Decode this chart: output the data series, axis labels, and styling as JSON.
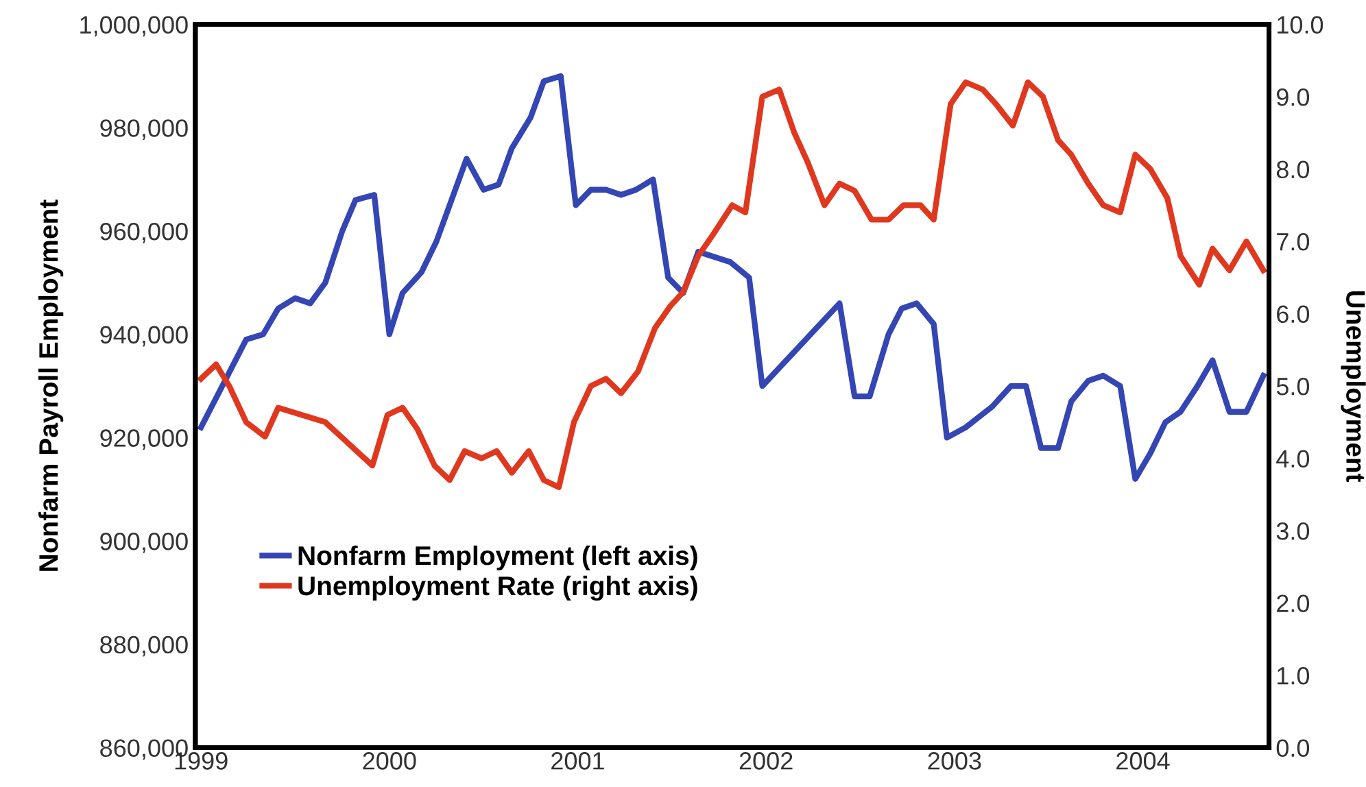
{
  "chart_data": {
    "type": "line",
    "ylabel": "Nonfarm Payroll Employment",
    "y2label": "Unemployment",
    "xlim": [
      1998.97,
      2004.67
    ],
    "xticks": [
      1999,
      2000,
      2001,
      2002,
      2003,
      2004
    ],
    "ylim": [
      860000,
      1000000
    ],
    "yticks": [
      {
        "value": 860000,
        "label": "860,000"
      },
      {
        "value": 880000,
        "label": "880,000"
      },
      {
        "value": 900000,
        "label": "900,000"
      },
      {
        "value": 920000,
        "label": "920,000"
      },
      {
        "value": 940000,
        "label": "940,000"
      },
      {
        "value": 960000,
        "label": "960,000"
      },
      {
        "value": 980000,
        "label": "980,000"
      },
      {
        "value": 1000000,
        "label": "1,000,000"
      }
    ],
    "y2lim": [
      0,
      10
    ],
    "y2ticks": [
      {
        "value": 0,
        "label": "0.0"
      },
      {
        "value": 1,
        "label": "1.0"
      },
      {
        "value": 2,
        "label": "2.0"
      },
      {
        "value": 3,
        "label": "3.0"
      },
      {
        "value": 4,
        "label": "4.0"
      },
      {
        "value": 5,
        "label": "5.0"
      },
      {
        "value": 6,
        "label": "6.0"
      },
      {
        "value": 7,
        "label": "7.0"
      },
      {
        "value": 8,
        "label": "8.0"
      },
      {
        "value": 9,
        "label": "9.0"
      },
      {
        "value": 10,
        "label": "10.0"
      }
    ],
    "grid": false,
    "legend": "lower left",
    "marker": "none",
    "line_style": "solid",
    "series": [
      {
        "name": "Nonfarm Employment (left axis)",
        "color": "#3445b4",
        "axis": "y",
        "x": [
          1999.0,
          1999.24,
          1999.33,
          1999.41,
          1999.5,
          1999.58,
          1999.66,
          1999.75,
          1999.82,
          1999.92,
          2000.0,
          2000.07,
          2000.17,
          2000.25,
          2000.34,
          2000.41,
          2000.5,
          2000.58,
          2000.65,
          2000.75,
          2000.82,
          2000.91,
          2000.99,
          2001.07,
          2001.15,
          2001.23,
          2001.31,
          2001.4,
          2001.48,
          2001.56,
          2001.64,
          2001.81,
          2001.91,
          2001.98,
          2002.39,
          2002.47,
          2002.55,
          2002.65,
          2002.72,
          2002.8,
          2002.89,
          2002.96,
          2003.06,
          2003.13,
          2003.2,
          2003.3,
          2003.38,
          2003.46,
          2003.55,
          2003.62,
          2003.71,
          2003.79,
          2003.88,
          2003.96,
          2004.04,
          2004.12,
          2004.2,
          2004.29,
          2004.37,
          2004.46,
          2004.55,
          2004.64
        ],
        "values": [
          922000,
          939000,
          940000,
          945000,
          947000,
          946000,
          950000,
          960000,
          966000,
          967000,
          940000,
          948000,
          952000,
          958000,
          967000,
          974000,
          968000,
          969000,
          976000,
          982000,
          989000,
          990000,
          965000,
          968000,
          968000,
          967000,
          968000,
          970000,
          951000,
          948000,
          956000,
          954000,
          951000,
          930000,
          946000,
          928000,
          928000,
          940000,
          945000,
          946000,
          942000,
          920000,
          922000,
          924000,
          926000,
          930000,
          930000,
          918000,
          918000,
          927000,
          931000,
          932000,
          930000,
          912000,
          917000,
          923000,
          925000,
          930000,
          935000,
          925000,
          925000,
          932000
        ]
      },
      {
        "name": "Unemployment Rate (right axis)",
        "color": "#e0381f",
        "axis": "y2",
        "x": [
          1999.0,
          1999.08,
          1999.15,
          1999.24,
          1999.34,
          1999.41,
          1999.66,
          1999.91,
          1999.99,
          2000.07,
          2000.15,
          2000.24,
          2000.32,
          2000.4,
          2000.49,
          2000.57,
          2000.65,
          2000.74,
          2000.82,
          2000.9,
          2000.98,
          2001.07,
          2001.15,
          2001.23,
          2001.32,
          2001.41,
          2001.49,
          2001.56,
          2001.64,
          2001.72,
          2001.82,
          2001.89,
          2001.98,
          2002.07,
          2002.15,
          2002.22,
          2002.31,
          2002.39,
          2002.47,
          2002.56,
          2002.65,
          2002.73,
          2002.82,
          2002.89,
          2002.98,
          2003.06,
          2003.15,
          2003.22,
          2003.31,
          2003.39,
          2003.47,
          2003.55,
          2003.62,
          2003.71,
          2003.79,
          2003.88,
          2003.96,
          2004.04,
          2004.13,
          2004.2,
          2004.3,
          2004.37,
          2004.46,
          2004.55,
          2004.64
        ],
        "values": [
          5.1,
          5.3,
          5.0,
          4.5,
          4.3,
          4.7,
          4.5,
          3.9,
          4.6,
          4.7,
          4.4,
          3.9,
          3.7,
          4.1,
          4.0,
          4.1,
          3.8,
          4.1,
          3.7,
          3.6,
          4.5,
          5.0,
          5.1,
          4.9,
          5.2,
          5.8,
          6.1,
          6.3,
          6.8,
          7.1,
          7.5,
          7.4,
          9.0,
          9.1,
          8.5,
          8.1,
          7.5,
          7.8,
          7.7,
          7.3,
          7.3,
          7.5,
          7.5,
          7.3,
          8.9,
          9.2,
          9.1,
          8.9,
          8.6,
          9.2,
          9.0,
          8.4,
          8.2,
          7.8,
          7.5,
          7.4,
          8.2,
          8.0,
          7.6,
          6.8,
          6.4,
          6.9,
          6.6,
          7.0,
          6.6
        ]
      }
    ]
  }
}
